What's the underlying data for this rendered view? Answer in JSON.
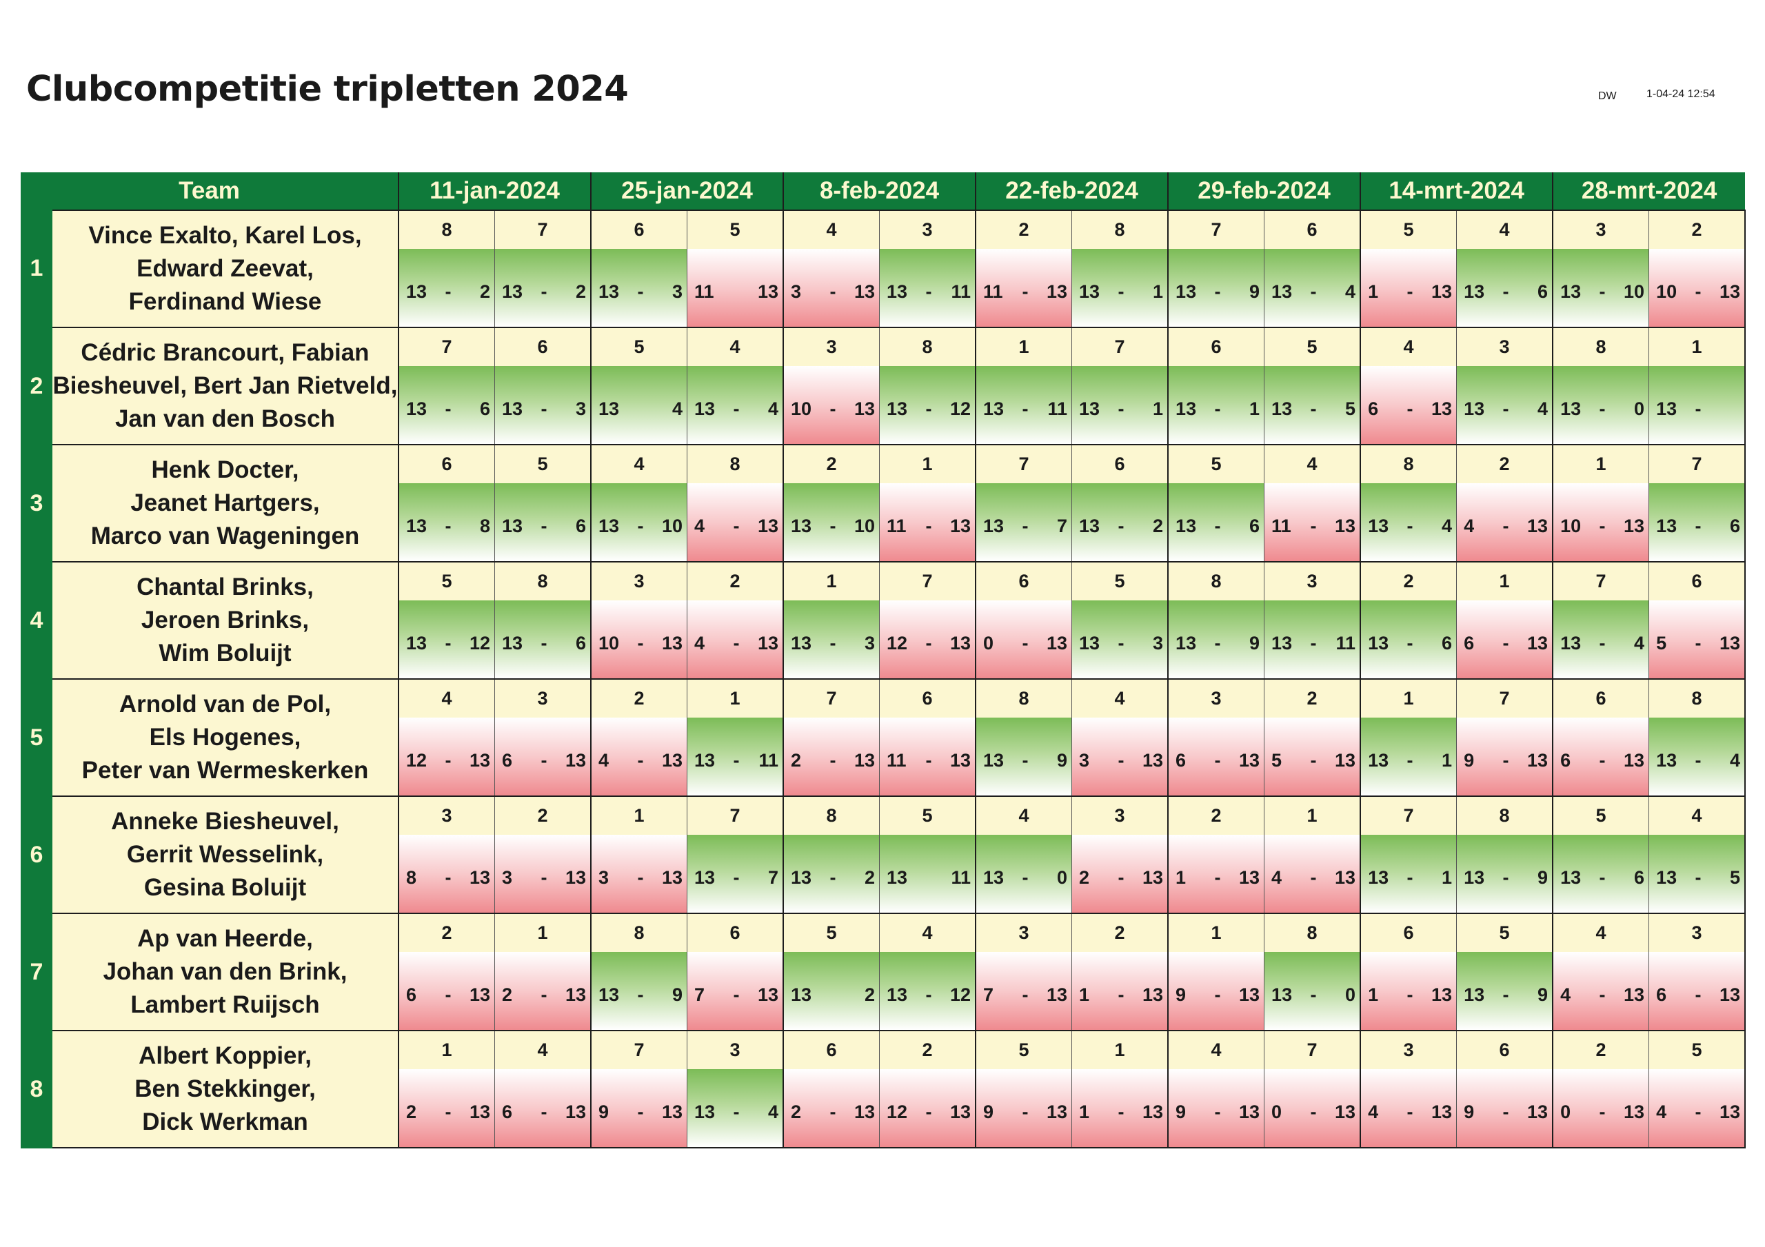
{
  "title": "Clubcompetitie tripletten 2024",
  "author": "DW",
  "printed": "1-04-24 12:54",
  "colors": {
    "header": "#0f7a3a",
    "cream": "#fcf7d1",
    "win": "#7cbc57",
    "loss": "#ef8a8f"
  },
  "columns": {
    "team": "Team",
    "dates": [
      "11-jan-2024",
      "25-jan-2024",
      "8-feb-2024",
      "22-feb-2024",
      "29-feb-2024",
      "14-mrt-2024",
      "28-mrt-2024"
    ]
  },
  "teams": [
    {
      "no": "1",
      "players": [
        "Vince Exalto, Karel Los,",
        "Edward Zeevat,",
        "Ferdinand Wiese"
      ],
      "opponents": [
        "8",
        "7",
        "6",
        "5",
        "4",
        "3",
        "2",
        "8",
        "7",
        "6",
        "5",
        "4",
        "3",
        "2"
      ],
      "scores": [
        {
          "a": "13",
          "d": "-",
          "b": "2",
          "r": "win"
        },
        {
          "a": "13",
          "d": "-",
          "b": "2",
          "r": "win"
        },
        {
          "a": "13",
          "d": "-",
          "b": "3",
          "r": "win"
        },
        {
          "a": "11",
          "d": "",
          "b": "13",
          "r": "loss"
        },
        {
          "a": "3",
          "d": "-",
          "b": "13",
          "r": "loss"
        },
        {
          "a": "13",
          "d": "-",
          "b": "11",
          "r": "win"
        },
        {
          "a": "11",
          "d": "-",
          "b": "13",
          "r": "loss"
        },
        {
          "a": "13",
          "d": "-",
          "b": "1",
          "r": "win"
        },
        {
          "a": "13",
          "d": "-",
          "b": "9",
          "r": "win"
        },
        {
          "a": "13",
          "d": "-",
          "b": "4",
          "r": "win"
        },
        {
          "a": "1",
          "d": "-",
          "b": "13",
          "r": "loss"
        },
        {
          "a": "13",
          "d": "-",
          "b": "6",
          "r": "win"
        },
        {
          "a": "13",
          "d": "-",
          "b": "10",
          "r": "win"
        },
        {
          "a": "10",
          "d": "-",
          "b": "13",
          "r": "loss"
        }
      ]
    },
    {
      "no": "2",
      "players": [
        "Cédric Brancourt, Fabian",
        "Biesheuvel, Bert Jan Rietveld,",
        "Jan van den Bosch"
      ],
      "opponents": [
        "7",
        "6",
        "5",
        "4",
        "3",
        "8",
        "1",
        "7",
        "6",
        "5",
        "4",
        "3",
        "8",
        "1"
      ],
      "scores": [
        {
          "a": "13",
          "d": "-",
          "b": "6",
          "r": "win"
        },
        {
          "a": "13",
          "d": "-",
          "b": "3",
          "r": "win"
        },
        {
          "a": "13",
          "d": "",
          "b": "4",
          "r": "win"
        },
        {
          "a": "13",
          "d": "-",
          "b": "4",
          "r": "win"
        },
        {
          "a": "10",
          "d": "-",
          "b": "13",
          "r": "loss"
        },
        {
          "a": "13",
          "d": "-",
          "b": "12",
          "r": "win"
        },
        {
          "a": "13",
          "d": "-",
          "b": "11",
          "r": "win"
        },
        {
          "a": "13",
          "d": "-",
          "b": "1",
          "r": "win"
        },
        {
          "a": "13",
          "d": "-",
          "b": "1",
          "r": "win"
        },
        {
          "a": "13",
          "d": "-",
          "b": "5",
          "r": "win"
        },
        {
          "a": "6",
          "d": "-",
          "b": "13",
          "r": "loss"
        },
        {
          "a": "13",
          "d": "-",
          "b": "4",
          "r": "win"
        },
        {
          "a": "13",
          "d": "-",
          "b": "0",
          "r": "win"
        },
        {
          "a": "13",
          "d": "-",
          "b": "",
          "r": "win"
        }
      ]
    },
    {
      "no": "3",
      "players": [
        "Henk Docter,",
        "Jeanet Hartgers,",
        "Marco van Wageningen"
      ],
      "opponents": [
        "6",
        "5",
        "4",
        "8",
        "2",
        "1",
        "7",
        "6",
        "5",
        "4",
        "8",
        "2",
        "1",
        "7"
      ],
      "scores": [
        {
          "a": "13",
          "d": "-",
          "b": "8",
          "r": "win"
        },
        {
          "a": "13",
          "d": "-",
          "b": "6",
          "r": "win"
        },
        {
          "a": "13",
          "d": "-",
          "b": "10",
          "r": "win"
        },
        {
          "a": "4",
          "d": "-",
          "b": "13",
          "r": "loss"
        },
        {
          "a": "13",
          "d": "-",
          "b": "10",
          "r": "win"
        },
        {
          "a": "11",
          "d": "-",
          "b": "13",
          "r": "loss"
        },
        {
          "a": "13",
          "d": "-",
          "b": "7",
          "r": "win"
        },
        {
          "a": "13",
          "d": "-",
          "b": "2",
          "r": "win"
        },
        {
          "a": "13",
          "d": "-",
          "b": "6",
          "r": "win"
        },
        {
          "a": "11",
          "d": "-",
          "b": "13",
          "r": "loss"
        },
        {
          "a": "13",
          "d": "-",
          "b": "4",
          "r": "win"
        },
        {
          "a": "4",
          "d": "-",
          "b": "13",
          "r": "loss"
        },
        {
          "a": "10",
          "d": "-",
          "b": "13",
          "r": "loss"
        },
        {
          "a": "13",
          "d": "-",
          "b": "6",
          "r": "win"
        }
      ]
    },
    {
      "no": "4",
      "players": [
        "Chantal Brinks,",
        "Jeroen Brinks,",
        "Wim Boluijt"
      ],
      "opponents": [
        "5",
        "8",
        "3",
        "2",
        "1",
        "7",
        "6",
        "5",
        "8",
        "3",
        "2",
        "1",
        "7",
        "6"
      ],
      "scores": [
        {
          "a": "13",
          "d": "-",
          "b": "12",
          "r": "win"
        },
        {
          "a": "13",
          "d": "-",
          "b": "6",
          "r": "win"
        },
        {
          "a": "10",
          "d": "-",
          "b": "13",
          "r": "loss"
        },
        {
          "a": "4",
          "d": "-",
          "b": "13",
          "r": "loss"
        },
        {
          "a": "13",
          "d": "-",
          "b": "3",
          "r": "win"
        },
        {
          "a": "12",
          "d": "-",
          "b": "13",
          "r": "loss"
        },
        {
          "a": "0",
          "d": "-",
          "b": "13",
          "r": "loss"
        },
        {
          "a": "13",
          "d": "-",
          "b": "3",
          "r": "win"
        },
        {
          "a": "13",
          "d": "-",
          "b": "9",
          "r": "win"
        },
        {
          "a": "13",
          "d": "-",
          "b": "11",
          "r": "win"
        },
        {
          "a": "13",
          "d": "-",
          "b": "6",
          "r": "win"
        },
        {
          "a": "6",
          "d": "-",
          "b": "13",
          "r": "loss"
        },
        {
          "a": "13",
          "d": "-",
          "b": "4",
          "r": "win"
        },
        {
          "a": "5",
          "d": "-",
          "b": "13",
          "r": "loss"
        }
      ]
    },
    {
      "no": "5",
      "players": [
        "Arnold van de Pol,",
        "Els Hogenes,",
        "Peter van Wermeskerken"
      ],
      "opponents": [
        "4",
        "3",
        "2",
        "1",
        "7",
        "6",
        "8",
        "4",
        "3",
        "2",
        "1",
        "7",
        "6",
        "8"
      ],
      "scores": [
        {
          "a": "12",
          "d": "-",
          "b": "13",
          "r": "loss"
        },
        {
          "a": "6",
          "d": "-",
          "b": "13",
          "r": "loss"
        },
        {
          "a": "4",
          "d": "-",
          "b": "13",
          "r": "loss"
        },
        {
          "a": "13",
          "d": "-",
          "b": "11",
          "r": "win"
        },
        {
          "a": "2",
          "d": "-",
          "b": "13",
          "r": "loss"
        },
        {
          "a": "11",
          "d": "-",
          "b": "13",
          "r": "loss"
        },
        {
          "a": "13",
          "d": "-",
          "b": "9",
          "r": "win"
        },
        {
          "a": "3",
          "d": "-",
          "b": "13",
          "r": "loss"
        },
        {
          "a": "6",
          "d": "-",
          "b": "13",
          "r": "loss"
        },
        {
          "a": "5",
          "d": "-",
          "b": "13",
          "r": "loss"
        },
        {
          "a": "13",
          "d": "-",
          "b": "1",
          "r": "win"
        },
        {
          "a": "9",
          "d": "-",
          "b": "13",
          "r": "loss"
        },
        {
          "a": "6",
          "d": "-",
          "b": "13",
          "r": "loss"
        },
        {
          "a": "13",
          "d": "-",
          "b": "4",
          "r": "win"
        }
      ]
    },
    {
      "no": "6",
      "players": [
        "Anneke Biesheuvel,",
        "Gerrit Wesselink,",
        "Gesina Boluijt"
      ],
      "opponents": [
        "3",
        "2",
        "1",
        "7",
        "8",
        "5",
        "4",
        "3",
        "2",
        "1",
        "7",
        "8",
        "5",
        "4"
      ],
      "scores": [
        {
          "a": "8",
          "d": "-",
          "b": "13",
          "r": "loss"
        },
        {
          "a": "3",
          "d": "-",
          "b": "13",
          "r": "loss"
        },
        {
          "a": "3",
          "d": "-",
          "b": "13",
          "r": "loss"
        },
        {
          "a": "13",
          "d": "-",
          "b": "7",
          "r": "win"
        },
        {
          "a": "13",
          "d": "-",
          "b": "2",
          "r": "win"
        },
        {
          "a": "13",
          "d": "",
          "b": "11",
          "r": "win"
        },
        {
          "a": "13",
          "d": "-",
          "b": "0",
          "r": "win"
        },
        {
          "a": "2",
          "d": "-",
          "b": "13",
          "r": "loss"
        },
        {
          "a": "1",
          "d": "-",
          "b": "13",
          "r": "loss"
        },
        {
          "a": "4",
          "d": "-",
          "b": "13",
          "r": "loss"
        },
        {
          "a": "13",
          "d": "-",
          "b": "1",
          "r": "win"
        },
        {
          "a": "13",
          "d": "-",
          "b": "9",
          "r": "win"
        },
        {
          "a": "13",
          "d": "-",
          "b": "6",
          "r": "win"
        },
        {
          "a": "13",
          "d": "-",
          "b": "5",
          "r": "win"
        }
      ]
    },
    {
      "no": "7",
      "players": [
        "Ap van Heerde,",
        "Johan van den Brink,",
        "Lambert Ruijsch"
      ],
      "opponents": [
        "2",
        "1",
        "8",
        "6",
        "5",
        "4",
        "3",
        "2",
        "1",
        "8",
        "6",
        "5",
        "4",
        "3"
      ],
      "scores": [
        {
          "a": "6",
          "d": "-",
          "b": "13",
          "r": "loss"
        },
        {
          "a": "2",
          "d": "-",
          "b": "13",
          "r": "loss"
        },
        {
          "a": "13",
          "d": "-",
          "b": "9",
          "r": "win"
        },
        {
          "a": "7",
          "d": "-",
          "b": "13",
          "r": "loss"
        },
        {
          "a": "13",
          "d": "",
          "b": "2",
          "r": "win"
        },
        {
          "a": "13",
          "d": "-",
          "b": "12",
          "r": "win"
        },
        {
          "a": "7",
          "d": "-",
          "b": "13",
          "r": "loss"
        },
        {
          "a": "1",
          "d": "-",
          "b": "13",
          "r": "loss"
        },
        {
          "a": "9",
          "d": "-",
          "b": "13",
          "r": "loss"
        },
        {
          "a": "13",
          "d": "-",
          "b": "0",
          "r": "win"
        },
        {
          "a": "1",
          "d": "-",
          "b": "13",
          "r": "loss"
        },
        {
          "a": "13",
          "d": "-",
          "b": "9",
          "r": "win"
        },
        {
          "a": "4",
          "d": "-",
          "b": "13",
          "r": "loss"
        },
        {
          "a": "6",
          "d": "-",
          "b": "13",
          "r": "loss"
        }
      ]
    },
    {
      "no": "8",
      "players": [
        "Albert Koppier,",
        "Ben Stekkinger,",
        "Dick Werkman"
      ],
      "opponents": [
        "1",
        "4",
        "7",
        "3",
        "6",
        "2",
        "5",
        "1",
        "4",
        "7",
        "3",
        "6",
        "2",
        "5"
      ],
      "scores": [
        {
          "a": "2",
          "d": "-",
          "b": "13",
          "r": "loss"
        },
        {
          "a": "6",
          "d": "-",
          "b": "13",
          "r": "loss"
        },
        {
          "a": "9",
          "d": "-",
          "b": "13",
          "r": "loss"
        },
        {
          "a": "13",
          "d": "-",
          "b": "4",
          "r": "win"
        },
        {
          "a": "2",
          "d": "-",
          "b": "13",
          "r": "loss"
        },
        {
          "a": "12",
          "d": "-",
          "b": "13",
          "r": "loss"
        },
        {
          "a": "9",
          "d": "-",
          "b": "13",
          "r": "loss"
        },
        {
          "a": "1",
          "d": "-",
          "b": "13",
          "r": "loss"
        },
        {
          "a": "9",
          "d": "-",
          "b": "13",
          "r": "loss"
        },
        {
          "a": "0",
          "d": "-",
          "b": "13",
          "r": "loss"
        },
        {
          "a": "4",
          "d": "-",
          "b": "13",
          "r": "loss"
        },
        {
          "a": "9",
          "d": "-",
          "b": "13",
          "r": "loss"
        },
        {
          "a": "0",
          "d": "-",
          "b": "13",
          "r": "loss"
        },
        {
          "a": "4",
          "d": "-",
          "b": "13",
          "r": "loss"
        }
      ]
    }
  ]
}
